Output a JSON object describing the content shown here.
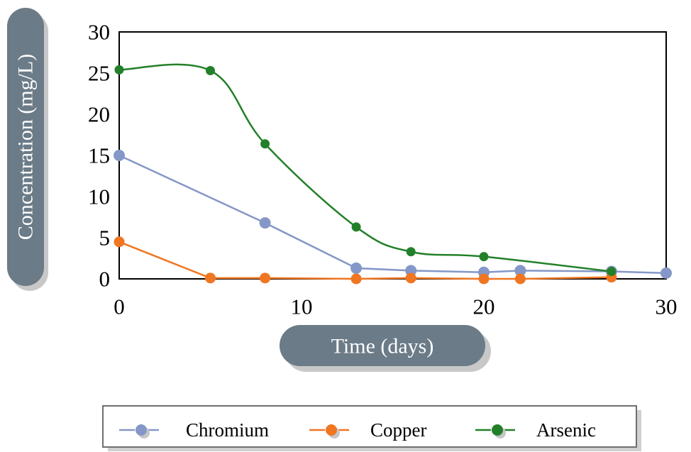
{
  "chart_data": {
    "type": "line",
    "xlabel": "Time (days)",
    "ylabel": "Concentration (mg/L)",
    "xlim": [
      0,
      30
    ],
    "ylim": [
      0,
      30
    ],
    "xticks": [
      "0",
      "10",
      "20",
      "30"
    ],
    "yticks": [
      "0",
      "5",
      "10",
      "15",
      "20",
      "25",
      "30"
    ],
    "grid": false,
    "legend_position": "bottom",
    "series": [
      {
        "name": "Chromium",
        "color": "#8497c8",
        "x": [
          0,
          8,
          13,
          16,
          20,
          22,
          27,
          30
        ],
        "y": [
          15.0,
          6.8,
          1.3,
          1.0,
          0.8,
          1.0,
          0.9,
          0.7
        ]
      },
      {
        "name": "Copper",
        "color": "#f07622",
        "x": [
          0,
          5,
          8,
          13,
          16,
          20,
          22,
          27
        ],
        "y": [
          4.5,
          0.1,
          0.1,
          0.0,
          0.1,
          0.0,
          0.0,
          0.2
        ]
      },
      {
        "name": "Arsenic",
        "color": "#23802a",
        "x": [
          0,
          5,
          8,
          13,
          16,
          20,
          27
        ],
        "y": [
          25.4,
          25.3,
          16.4,
          6.3,
          3.3,
          2.7,
          0.9
        ]
      }
    ]
  }
}
